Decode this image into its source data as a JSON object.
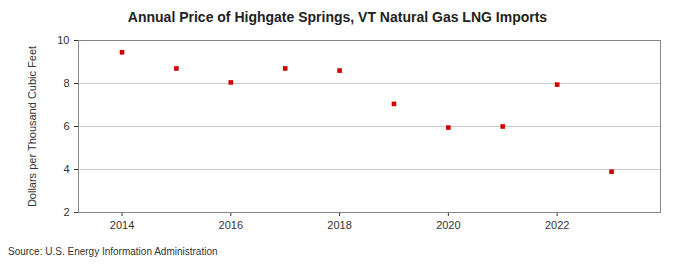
{
  "chart_data": {
    "type": "scatter",
    "title": "Annual Price of Highgate Springs, VT Natural Gas LNG Imports",
    "y_label": "Dollars per Thousand Cubic Feet",
    "caption": "Source: U.S. Energy Information Administration",
    "x": [
      2014,
      2015,
      2016,
      2017,
      2018,
      2019,
      2020,
      2021,
      2022,
      2023
    ],
    "values": [
      9.45,
      8.7,
      8.05,
      8.7,
      8.6,
      7.05,
      5.95,
      6.0,
      7.95,
      3.9
    ],
    "color": "#cc0000",
    "marker": "square",
    "xlim": [
      2013.2,
      2023.9
    ],
    "xticks": [
      2014,
      2016,
      2018,
      2020,
      2022
    ],
    "ylim": [
      2,
      10
    ],
    "yticks": [
      2,
      4,
      6,
      8,
      10
    ],
    "grid": true
  }
}
